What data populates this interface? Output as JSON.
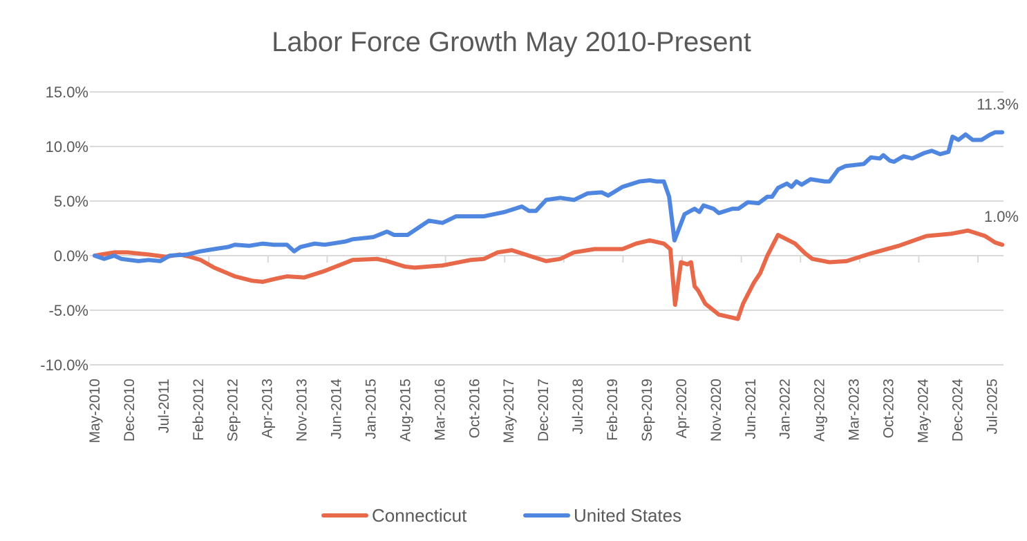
{
  "chart_data": {
    "type": "line",
    "title": "Labor Force Growth May 2010-Present",
    "xlabel": "",
    "ylabel": "",
    "x_unit": "decimal year",
    "xlim": [
      2010.33,
      2025.75
    ],
    "ylim": [
      -10,
      15
    ],
    "yticks": [
      15,
      10,
      5,
      0,
      -5,
      -10
    ],
    "ytick_labels": [
      "15.0%",
      "10.0%",
      "5.0%",
      "0.0%",
      "-5.0%",
      "-10.0%"
    ],
    "xtick_labels": [
      "May-2010",
      "Dec-2010",
      "Jul-2011",
      "Feb-2012",
      "Sep-2012",
      "Apr-2013",
      "Nov-2013",
      "Jun-2014",
      "Jan-2015",
      "Aug-2015",
      "Mar-2016",
      "Oct-2016",
      "May-2017",
      "Dec-2017",
      "Jul-2018",
      "Feb-2019",
      "Sep-2019",
      "Apr-2020",
      "Nov-2020",
      "Jun-2021",
      "Jan-2022",
      "Aug-2022",
      "Mar-2023",
      "Oct-2023",
      "May-2024",
      "Dec-2024",
      "Jul-2025"
    ],
    "grid": true,
    "legend": "bottom",
    "series": [
      {
        "name": "Connecticut",
        "color": "#E8684A",
        "end_label": "1.0%",
        "points": [
          [
            2010.33,
            0
          ],
          [
            2010.66,
            0.3
          ],
          [
            2010.89,
            0.3
          ],
          [
            2011.24,
            0.1
          ],
          [
            2011.53,
            -0.1
          ],
          [
            2011.77,
            0.1
          ],
          [
            2011.94,
            -0.1
          ],
          [
            2012.12,
            -0.4
          ],
          [
            2012.35,
            -1.1
          ],
          [
            2012.7,
            -1.9
          ],
          [
            2012.99,
            -2.3
          ],
          [
            2013.17,
            -2.4
          ],
          [
            2013.4,
            -2.1
          ],
          [
            2013.58,
            -1.9
          ],
          [
            2013.87,
            -2.0
          ],
          [
            2014.22,
            -1.4
          ],
          [
            2014.69,
            -0.4
          ],
          [
            2015.1,
            -0.3
          ],
          [
            2015.27,
            -0.5
          ],
          [
            2015.57,
            -1.0
          ],
          [
            2015.74,
            -1.1
          ],
          [
            2016.21,
            -0.9
          ],
          [
            2016.68,
            -0.4
          ],
          [
            2016.91,
            -0.3
          ],
          [
            2017.14,
            0.3
          ],
          [
            2017.38,
            0.5
          ],
          [
            2017.61,
            0.1
          ],
          [
            2017.96,
            -0.5
          ],
          [
            2018.2,
            -0.3
          ],
          [
            2018.43,
            0.3
          ],
          [
            2018.78,
            0.6
          ],
          [
            2019.25,
            0.6
          ],
          [
            2019.48,
            1.1
          ],
          [
            2019.71,
            1.4
          ],
          [
            2019.95,
            1.1
          ],
          [
            2020.06,
            0.6
          ],
          [
            2020.14,
            -4.5
          ],
          [
            2020.24,
            -0.6
          ],
          [
            2020.35,
            -0.8
          ],
          [
            2020.41,
            -0.6
          ],
          [
            2020.47,
            -2.8
          ],
          [
            2020.53,
            -3.2
          ],
          [
            2020.65,
            -4.4
          ],
          [
            2020.88,
            -5.4
          ],
          [
            2021.2,
            -5.8
          ],
          [
            2021.29,
            -4.4
          ],
          [
            2021.47,
            -2.5
          ],
          [
            2021.58,
            -1.6
          ],
          [
            2021.7,
            0
          ],
          [
            2021.88,
            1.9
          ],
          [
            2022.17,
            1.1
          ],
          [
            2022.34,
            0.2
          ],
          [
            2022.46,
            -0.3
          ],
          [
            2022.75,
            -0.6
          ],
          [
            2023.04,
            -0.5
          ],
          [
            2023.45,
            0.2
          ],
          [
            2023.92,
            0.9
          ],
          [
            2024.39,
            1.8
          ],
          [
            2024.8,
            2.0
          ],
          [
            2025.09,
            2.3
          ],
          [
            2025.38,
            1.8
          ],
          [
            2025.55,
            1.2
          ],
          [
            2025.67,
            1.0
          ]
        ]
      },
      {
        "name": "United States",
        "color": "#4F86E0",
        "end_label": "11.3%",
        "points": [
          [
            2010.33,
            0
          ],
          [
            2010.49,
            -0.3
          ],
          [
            2010.66,
            0
          ],
          [
            2010.78,
            -0.3
          ],
          [
            2011.07,
            -0.5
          ],
          [
            2011.24,
            -0.4
          ],
          [
            2011.44,
            -0.5
          ],
          [
            2011.6,
            0
          ],
          [
            2011.89,
            0.1
          ],
          [
            2012.12,
            0.4
          ],
          [
            2012.35,
            0.6
          ],
          [
            2012.59,
            0.8
          ],
          [
            2012.7,
            1.0
          ],
          [
            2012.94,
            0.9
          ],
          [
            2013.17,
            1.1
          ],
          [
            2013.35,
            1.0
          ],
          [
            2013.58,
            1.0
          ],
          [
            2013.7,
            0.4
          ],
          [
            2013.81,
            0.8
          ],
          [
            2014.05,
            1.1
          ],
          [
            2014.22,
            1.0
          ],
          [
            2014.57,
            1.3
          ],
          [
            2014.69,
            1.5
          ],
          [
            2015.04,
            1.7
          ],
          [
            2015.27,
            2.2
          ],
          [
            2015.39,
            1.9
          ],
          [
            2015.62,
            1.9
          ],
          [
            2015.98,
            3.2
          ],
          [
            2016.21,
            3.0
          ],
          [
            2016.44,
            3.6
          ],
          [
            2016.91,
            3.6
          ],
          [
            2017.26,
            4.0
          ],
          [
            2017.55,
            4.5
          ],
          [
            2017.67,
            4.1
          ],
          [
            2017.79,
            4.1
          ],
          [
            2017.96,
            5.1
          ],
          [
            2018.2,
            5.3
          ],
          [
            2018.43,
            5.1
          ],
          [
            2018.66,
            5.7
          ],
          [
            2018.9,
            5.8
          ],
          [
            2019.01,
            5.5
          ],
          [
            2019.25,
            6.3
          ],
          [
            2019.54,
            6.8
          ],
          [
            2019.71,
            6.9
          ],
          [
            2019.83,
            6.8
          ],
          [
            2019.95,
            6.8
          ],
          [
            2020.04,
            5.4
          ],
          [
            2020.13,
            1.4
          ],
          [
            2020.3,
            3.8
          ],
          [
            2020.47,
            4.3
          ],
          [
            2020.55,
            4.0
          ],
          [
            2020.62,
            4.6
          ],
          [
            2020.79,
            4.3
          ],
          [
            2020.88,
            3.9
          ],
          [
            2021.11,
            4.3
          ],
          [
            2021.21,
            4.3
          ],
          [
            2021.37,
            4.9
          ],
          [
            2021.55,
            4.8
          ],
          [
            2021.7,
            5.4
          ],
          [
            2021.78,
            5.4
          ],
          [
            2021.88,
            6.2
          ],
          [
            2022.03,
            6.6
          ],
          [
            2022.11,
            6.3
          ],
          [
            2022.19,
            6.8
          ],
          [
            2022.28,
            6.5
          ],
          [
            2022.43,
            7.0
          ],
          [
            2022.67,
            6.8
          ],
          [
            2022.75,
            6.8
          ],
          [
            2022.9,
            7.9
          ],
          [
            2023.02,
            8.2
          ],
          [
            2023.33,
            8.4
          ],
          [
            2023.45,
            9.0
          ],
          [
            2023.6,
            8.9
          ],
          [
            2023.66,
            9.2
          ],
          [
            2023.77,
            8.7
          ],
          [
            2023.84,
            8.6
          ],
          [
            2024.0,
            9.1
          ],
          [
            2024.15,
            8.9
          ],
          [
            2024.35,
            9.4
          ],
          [
            2024.48,
            9.6
          ],
          [
            2024.62,
            9.3
          ],
          [
            2024.76,
            9.5
          ],
          [
            2024.83,
            10.9
          ],
          [
            2024.93,
            10.6
          ],
          [
            2025.05,
            11.1
          ],
          [
            2025.17,
            10.6
          ],
          [
            2025.32,
            10.6
          ],
          [
            2025.47,
            11.1
          ],
          [
            2025.55,
            11.3
          ],
          [
            2025.67,
            11.3
          ]
        ]
      }
    ]
  }
}
